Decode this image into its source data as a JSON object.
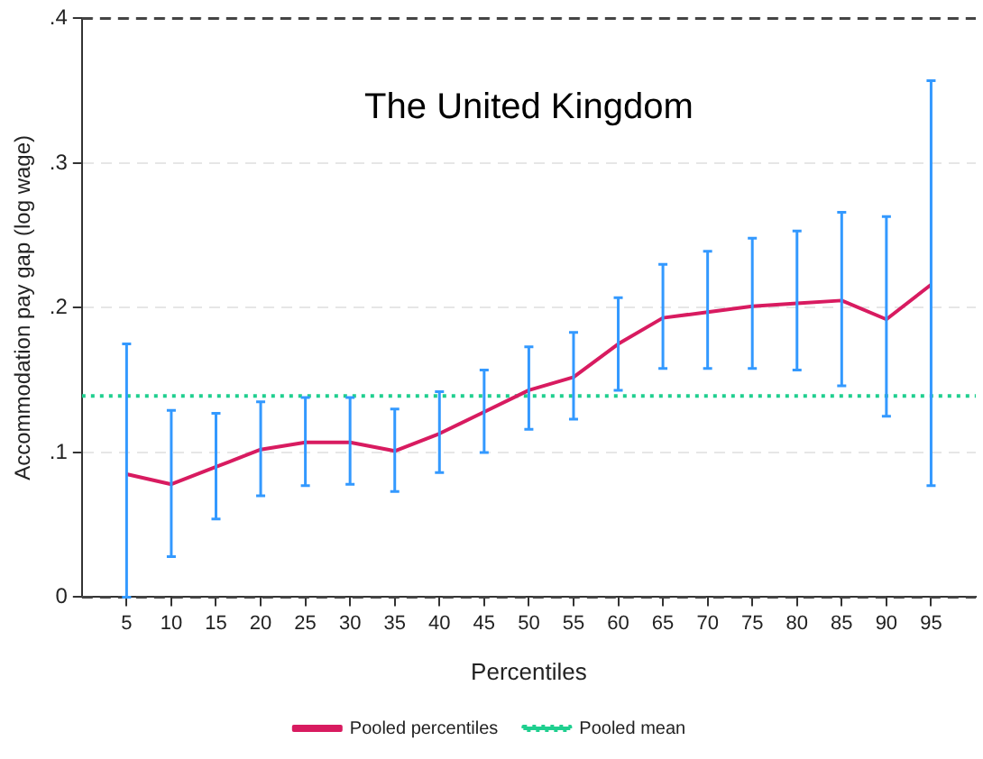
{
  "chart_data": {
    "type": "line",
    "title": "The United Kingdom",
    "xlabel": "Percentiles",
    "ylabel": "Accommodation pay gap (log wage)",
    "x": [
      5,
      10,
      15,
      20,
      25,
      30,
      35,
      40,
      45,
      50,
      55,
      60,
      65,
      70,
      75,
      80,
      85,
      90,
      95
    ],
    "series": [
      {
        "name": "Pooled percentiles",
        "color": "#d81b60",
        "line_style": "solid",
        "values": [
          0.085,
          0.078,
          0.09,
          0.102,
          0.107,
          0.107,
          0.101,
          0.113,
          0.128,
          0.143,
          0.152,
          0.175,
          0.193,
          0.197,
          0.201,
          0.203,
          0.205,
          0.192,
          0.216
        ],
        "errors": [
          [
            0,
            0.175
          ],
          [
            0.028,
            0.129
          ],
          [
            0.054,
            0.127
          ],
          [
            0.07,
            0.135
          ],
          [
            0.077,
            0.138
          ],
          [
            0.078,
            0.138
          ],
          [
            0.073,
            0.13
          ],
          [
            0.086,
            0.142
          ],
          [
            0.1,
            0.157
          ],
          [
            0.116,
            0.173
          ],
          [
            0.123,
            0.183
          ],
          [
            0.143,
            0.207
          ],
          [
            0.158,
            0.23
          ],
          [
            0.158,
            0.239
          ],
          [
            0.158,
            0.248
          ],
          [
            0.157,
            0.253
          ],
          [
            0.146,
            0.266
          ],
          [
            0.125,
            0.263
          ],
          [
            0.077,
            0.357
          ]
        ]
      },
      {
        "name": "Pooled mean",
        "color": "#1fcf8f",
        "line_style": "dotted",
        "x": [
          0,
          100
        ],
        "values": [
          0.139,
          0.139
        ]
      }
    ],
    "xlim": [
      0,
      100
    ],
    "xticks": [
      5,
      10,
      15,
      20,
      25,
      30,
      35,
      40,
      45,
      50,
      55,
      60,
      65,
      70,
      75,
      80,
      85,
      90,
      95
    ],
    "ylim": [
      0,
      0.4
    ],
    "yticks": [
      {
        "value": 0,
        "label": "0"
      },
      {
        "value": 0.1,
        "label": ".1"
      },
      {
        "value": 0.2,
        "label": ".2"
      },
      {
        "value": 0.3,
        "label": ".3"
      },
      {
        "value": 0.4,
        "label": ".4"
      }
    ],
    "ref_lines": [
      {
        "axis": "y",
        "value": 0,
        "color": "#444444",
        "line_style": "dashed"
      },
      {
        "axis": "y",
        "value": 0.4,
        "color": "#444444",
        "line_style": "dashed"
      }
    ],
    "grid": "y",
    "legend": "bottom",
    "marker": "none"
  }
}
